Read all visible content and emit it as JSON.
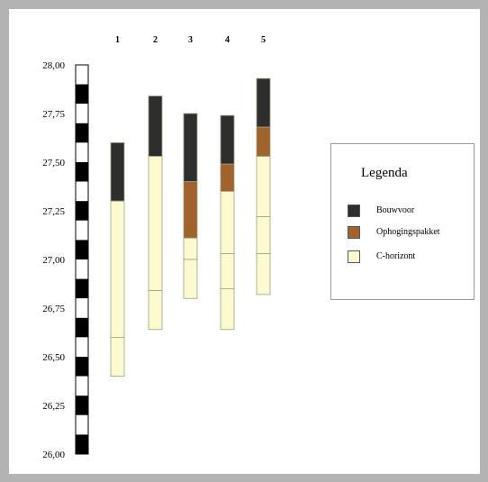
{
  "chart_data": {
    "type": "bar",
    "title": "",
    "ylim": [
      26.0,
      28.0
    ],
    "y_ticks": [
      "28,00",
      "27,75",
      "27,50",
      "27,25",
      "27,00",
      "26,75",
      "26,50",
      "26,25",
      "26,00"
    ],
    "columns": [
      {
        "label": "1",
        "top": 27.6,
        "bottom": 26.4,
        "layers": [
          {
            "type": "bouwvoor",
            "top": 27.6,
            "bottom": 27.3
          },
          {
            "type": "c-horizont",
            "top": 27.3,
            "bottom": 26.6
          },
          {
            "type": "c-horizont",
            "top": 26.6,
            "bottom": 26.4
          }
        ]
      },
      {
        "label": "2",
        "top": 27.84,
        "bottom": 26.64,
        "layers": [
          {
            "type": "bouwvoor",
            "top": 27.84,
            "bottom": 27.53
          },
          {
            "type": "c-horizont",
            "top": 27.53,
            "bottom": 26.84
          },
          {
            "type": "c-horizont",
            "top": 26.84,
            "bottom": 26.64
          }
        ]
      },
      {
        "label": "3",
        "top": 27.75,
        "bottom": 26.8,
        "layers": [
          {
            "type": "bouwvoor",
            "top": 27.75,
            "bottom": 27.4
          },
          {
            "type": "ophogingspakket",
            "top": 27.4,
            "bottom": 27.11
          },
          {
            "type": "c-horizont",
            "top": 27.11,
            "bottom": 27.0
          },
          {
            "type": "c-horizont",
            "top": 27.0,
            "bottom": 26.8
          }
        ]
      },
      {
        "label": "4",
        "top": 27.74,
        "bottom": 26.64,
        "layers": [
          {
            "type": "bouwvoor",
            "top": 27.74,
            "bottom": 27.49
          },
          {
            "type": "ophogingspakket",
            "top": 27.49,
            "bottom": 27.35
          },
          {
            "type": "c-horizont",
            "top": 27.35,
            "bottom": 27.03
          },
          {
            "type": "c-horizont",
            "top": 27.03,
            "bottom": 26.85
          },
          {
            "type": "c-horizont",
            "top": 26.85,
            "bottom": 26.64
          }
        ]
      },
      {
        "label": "5",
        "top": 27.93,
        "bottom": 26.82,
        "layers": [
          {
            "type": "bouwvoor",
            "top": 27.93,
            "bottom": 27.68
          },
          {
            "type": "ophogingspakket",
            "top": 27.68,
            "bottom": 27.53
          },
          {
            "type": "c-horizont",
            "top": 27.53,
            "bottom": 27.22
          },
          {
            "type": "c-horizont",
            "top": 27.22,
            "bottom": 27.03
          },
          {
            "type": "c-horizont",
            "top": 27.03,
            "bottom": 26.82
          }
        ]
      }
    ],
    "legend": {
      "title": "Legenda",
      "items": [
        {
          "key": "bouwvoor",
          "label": "Bouwvoor",
          "color": "#2e2e2e"
        },
        {
          "key": "ophogingspakket",
          "label": "Ophogingspakket",
          "color": "#a0632e"
        },
        {
          "key": "c-horizont",
          "label": "C-horizont",
          "color": "#fbfad0"
        }
      ]
    },
    "colors": {
      "layer_border": "#9e9e82",
      "scale_black": "#000000",
      "scale_white": "#ffffff",
      "background": "#b3b3b3"
    }
  }
}
